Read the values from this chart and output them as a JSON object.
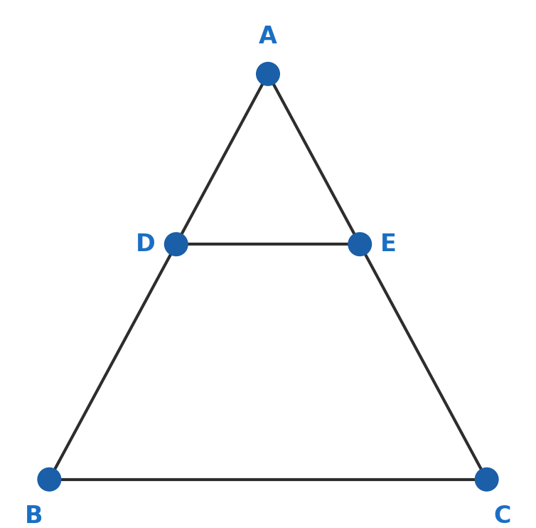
{
  "A": [
    0.5,
    0.875
  ],
  "B": [
    0.075,
    0.075
  ],
  "C": [
    0.925,
    0.075
  ],
  "de_ratio": 0.42,
  "point_color": "#1a5fa8",
  "point_size_scatter": 600,
  "line_color": "#2d2d2d",
  "line_width": 3.0,
  "label_color": "#1a6fc4",
  "label_fontsize": 24,
  "label_A": "A",
  "label_B": "B",
  "label_C": "C",
  "label_D": "D",
  "label_E": "E",
  "bg_color": "#ffffff",
  "figsize": [
    7.54,
    7.42
  ],
  "dpi": 100,
  "xlim": [
    0.0,
    1.0
  ],
  "ylim": [
    0.0,
    1.0
  ]
}
